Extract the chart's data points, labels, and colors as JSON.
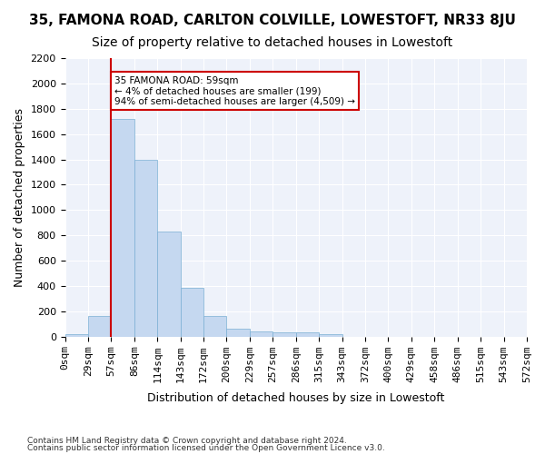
{
  "title": "35, FAMONA ROAD, CARLTON COLVILLE, LOWESTOFT, NR33 8JU",
  "subtitle": "Size of property relative to detached houses in Lowestoft",
  "xlabel": "Distribution of detached houses by size in Lowestoft",
  "ylabel": "Number of detached properties",
  "footnote1": "Contains HM Land Registry data © Crown copyright and database right 2024.",
  "footnote2": "Contains public sector information licensed under the Open Government Licence v3.0.",
  "bin_labels": [
    "0sqm",
    "29sqm",
    "57sqm",
    "86sqm",
    "114sqm",
    "143sqm",
    "172sqm",
    "200sqm",
    "229sqm",
    "257sqm",
    "286sqm",
    "315sqm",
    "343sqm",
    "372sqm",
    "400sqm",
    "429sqm",
    "458sqm",
    "486sqm",
    "515sqm",
    "543sqm",
    "572sqm"
  ],
  "bar_values": [
    20,
    160,
    1720,
    1400,
    830,
    385,
    165,
    65,
    40,
    30,
    30,
    20,
    0,
    0,
    0,
    0,
    0,
    0,
    0,
    0
  ],
  "bar_color": "#c5d8f0",
  "bar_edge_color": "#7bafd4",
  "bar_width": 1.0,
  "vline_x": 2,
  "vline_color": "#cc0000",
  "annotation_text": "35 FAMONA ROAD: 59sqm\n← 4% of detached houses are smaller (199)\n94% of semi-detached houses are larger (4,509) →",
  "annotation_box_color": "#cc0000",
  "annotation_text_color": "#000000",
  "ylim": [
    0,
    2200
  ],
  "yticks": [
    0,
    200,
    400,
    600,
    800,
    1000,
    1200,
    1400,
    1600,
    1800,
    2000,
    2200
  ],
  "background_color": "#eef2fa",
  "grid_color": "#ffffff",
  "title_fontsize": 11,
  "subtitle_fontsize": 10,
  "axis_label_fontsize": 9,
  "tick_fontsize": 8
}
